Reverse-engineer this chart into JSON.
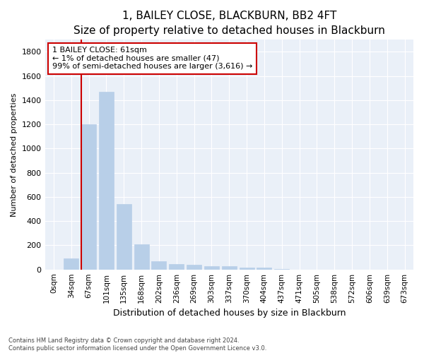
{
  "title1": "1, BAILEY CLOSE, BLACKBURN, BB2 4FT",
  "title2": "Size of property relative to detached houses in Blackburn",
  "xlabel": "Distribution of detached houses by size in Blackburn",
  "ylabel": "Number of detached properties",
  "categories": [
    "0sqm",
    "34sqm",
    "67sqm",
    "101sqm",
    "135sqm",
    "168sqm",
    "202sqm",
    "236sqm",
    "269sqm",
    "303sqm",
    "337sqm",
    "370sqm",
    "404sqm",
    "437sqm",
    "471sqm",
    "505sqm",
    "538sqm",
    "572sqm",
    "606sqm",
    "639sqm",
    "673sqm"
  ],
  "values": [
    0,
    90,
    1200,
    1470,
    540,
    210,
    70,
    45,
    40,
    25,
    25,
    18,
    15,
    5,
    0,
    0,
    0,
    0,
    0,
    0,
    0
  ],
  "bar_color": "#b8cfe8",
  "bar_edgecolor": "#b8cfe8",
  "highlight_index": 2,
  "highlight_line_color": "#cc0000",
  "ylim": [
    0,
    1900
  ],
  "yticks": [
    0,
    200,
    400,
    600,
    800,
    1000,
    1200,
    1400,
    1600,
    1800
  ],
  "annotation_line1": "1 BAILEY CLOSE: 61sqm",
  "annotation_line2": "← 1% of detached houses are smaller (47)",
  "annotation_line3": "99% of semi-detached houses are larger (3,616) →",
  "annotation_box_color": "#cc0000",
  "background_color": "#eaf0f8",
  "grid_color": "#ffffff",
  "footnote1": "Contains HM Land Registry data © Crown copyright and database right 2024.",
  "footnote2": "Contains public sector information licensed under the Open Government Licence v3.0.",
  "title1_fontsize": 11,
  "title2_fontsize": 10,
  "ylabel_fontsize": 8,
  "xlabel_fontsize": 9,
  "tick_fontsize": 8,
  "xtick_fontsize": 7.5
}
